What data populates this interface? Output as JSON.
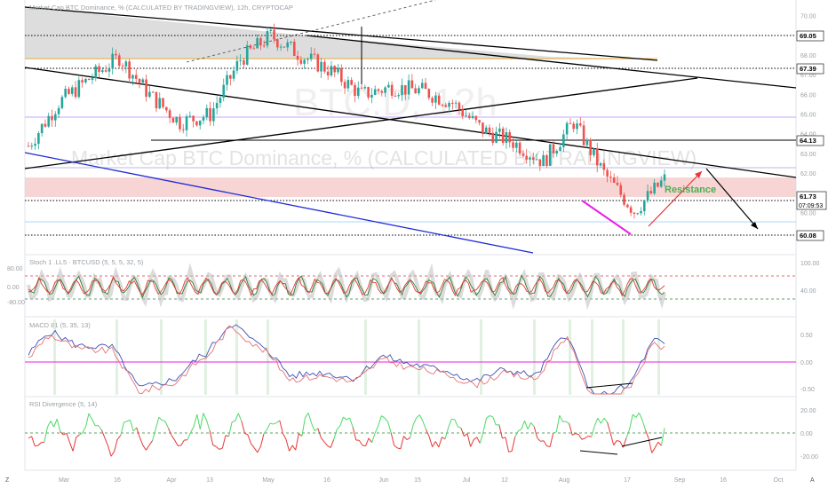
{
  "header": {
    "title": "Market Cap BTC Dominance, % (CALCULATED BY TRADINGVIEW), 12h, CRYPTOCAP"
  },
  "watermark": {
    "symbol": "BTC.D, 12h",
    "name": "Market Cap BTC Dominance, % (CALCULATED BY TRADINGVIEW)"
  },
  "annotation": {
    "resistance_label": "Resistance"
  },
  "price_levels": [
    {
      "label": "69.05"
    },
    {
      "label": "67.39"
    },
    {
      "label": "64.13"
    },
    {
      "label": "61.73"
    },
    {
      "label": "07:09:53"
    },
    {
      "label": "60.08"
    }
  ],
  "price_axis_ticks": [
    "70.00",
    "69.00",
    "68.00",
    "67.00",
    "66.00",
    "65.00",
    "64.00",
    "63.00",
    "62.00",
    "61.00",
    "60.00"
  ],
  "x_axis": {
    "labels": [
      "Mar",
      "16",
      "Apr",
      "13",
      "May",
      "16",
      "Jun",
      "15",
      "Jul",
      "12",
      "Aug",
      "17",
      "Sep",
      "16",
      "Oct"
    ]
  },
  "panes": [
    {
      "title": "Stoch 1 .LL5 · BTCUSD (5, 5, 5, 32, 5)",
      "left_ticks": [
        "80.00",
        "0.00",
        "-80.00"
      ],
      "right_ticks": [
        "100.00",
        "40.00"
      ]
    },
    {
      "title": "MACD 81 (5, 35, 13)",
      "left_ticks": [],
      "right_ticks": [
        "0.50",
        "0.00",
        "-0.50"
      ]
    },
    {
      "title": "RSI Divergence (5, 14)",
      "left_ticks": [],
      "right_ticks": [
        "20.00",
        "0.00",
        "-20.00"
      ]
    }
  ],
  "bottom": {
    "left_btn": "Z",
    "right_btn": "A"
  },
  "colors": {
    "up": "#26a69a",
    "down": "#ef5350",
    "resistance_zone": "#f4c7c7",
    "support_zone": "#b0b0b0",
    "channel": "#000000",
    "trend_blue": "#1f2bd6",
    "divergence": "#e91ee3",
    "projection": "#e53935"
  },
  "chart_data": {
    "type": "candlestick",
    "title": "Market Cap BTC Dominance, % (CALCULATED BY TRADINGVIEW), 12h, CRYPTOCAP",
    "xlabel": "",
    "ylabel": "",
    "ylim": [
      59.5,
      70.5
    ],
    "x_labels": [
      "Mar",
      "16",
      "Apr",
      "13",
      "May",
      "16",
      "Jun",
      "15",
      "Jul",
      "12",
      "Aug",
      "17",
      "Sep",
      "16",
      "Oct"
    ],
    "price_path_approx": [
      {
        "t": "Mar start",
        "close": 63.4
      },
      {
        "t": "mid Mar",
        "close": 65.6
      },
      {
        "t": "16",
        "close": 66.8
      },
      {
        "t": "late Mar",
        "close": 67.9
      },
      {
        "t": "Apr",
        "close": 66.0
      },
      {
        "t": "13",
        "close": 64.6
      },
      {
        "t": "late Apr",
        "close": 65.0
      },
      {
        "t": "May",
        "close": 67.8
      },
      {
        "t": "mid May",
        "close": 69.0
      },
      {
        "t": "16",
        "close": 68.0
      },
      {
        "t": "late May",
        "close": 67.2
      },
      {
        "t": "Jun",
        "close": 66.0
      },
      {
        "t": "15",
        "close": 66.4
      },
      {
        "t": "late Jun",
        "close": 66.2
      },
      {
        "t": "Jul",
        "close": 65.6
      },
      {
        "t": "12",
        "close": 64.2
      },
      {
        "t": "late Jul",
        "close": 63.6
      },
      {
        "t": "Aug",
        "close": 62.6
      },
      {
        "t": "early Aug",
        "close": 64.6
      },
      {
        "t": "Aug lower",
        "close": 62.0
      },
      {
        "t": "17",
        "close": 60.1
      },
      {
        "t": "late Aug",
        "close": 61.7
      }
    ],
    "horizontal_levels": [
      69.05,
      67.39,
      64.13,
      61.73,
      60.08
    ],
    "zones": [
      {
        "name": "supply",
        "from": 68.0,
        "to": 69.05
      },
      {
        "name": "resistance",
        "from": 61.9,
        "to": 62.6
      }
    ],
    "grid": false,
    "legend": "none"
  }
}
